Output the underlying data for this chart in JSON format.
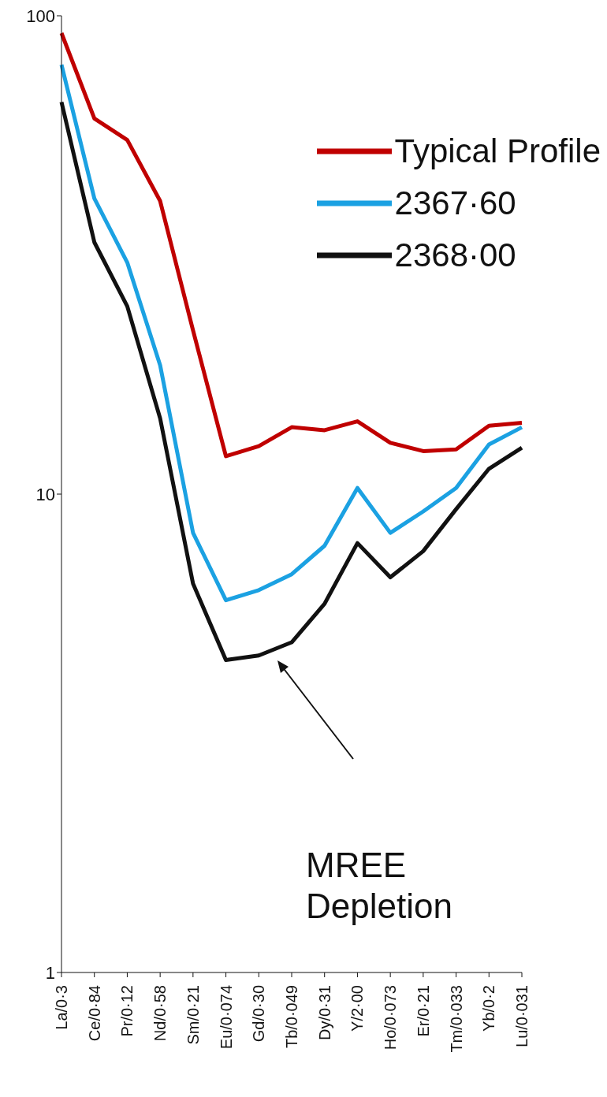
{
  "chart_data": {
    "type": "line",
    "categories": [
      "La/0·3",
      "Ce/0·84",
      "Pr/0·12",
      "Nd/0·58",
      "Sm/0·21",
      "Eu/0·074",
      "Gd/0·30",
      "Tb/0·049",
      "Dy/0·31",
      "Y/2·00",
      "Ho/0·073",
      "Er/0·21",
      "Tm/0·033",
      "Yb/0·2",
      "Lu/0·031"
    ],
    "series": [
      {
        "name": "Typical Profile",
        "color": "#c00000",
        "values": [
          92,
          61,
          55,
          41,
          22,
          12,
          12.6,
          13.8,
          13.6,
          14.2,
          12.8,
          12.3,
          12.4,
          13.9,
          14.1
        ]
      },
      {
        "name": "2367·60",
        "color": "#1ba1e2",
        "values": [
          79,
          41.5,
          30.5,
          18.6,
          8.3,
          6,
          6.3,
          6.8,
          7.8,
          10.3,
          8.3,
          9.2,
          10.3,
          12.7,
          13.8
        ]
      },
      {
        "name": "2368·00",
        "color": "#111111",
        "values": [
          66,
          33.6,
          24.7,
          14.4,
          6.5,
          4.5,
          4.6,
          4.9,
          5.9,
          7.9,
          6.7,
          7.6,
          9.3,
          11.3,
          12.5
        ]
      }
    ],
    "log": "y",
    "ylim": [
      1,
      100
    ],
    "yticks": [
      1,
      10,
      100
    ],
    "legend": "top right",
    "marker": "none",
    "line_style": "solid",
    "annotations": [
      "MREE Depletion"
    ]
  }
}
